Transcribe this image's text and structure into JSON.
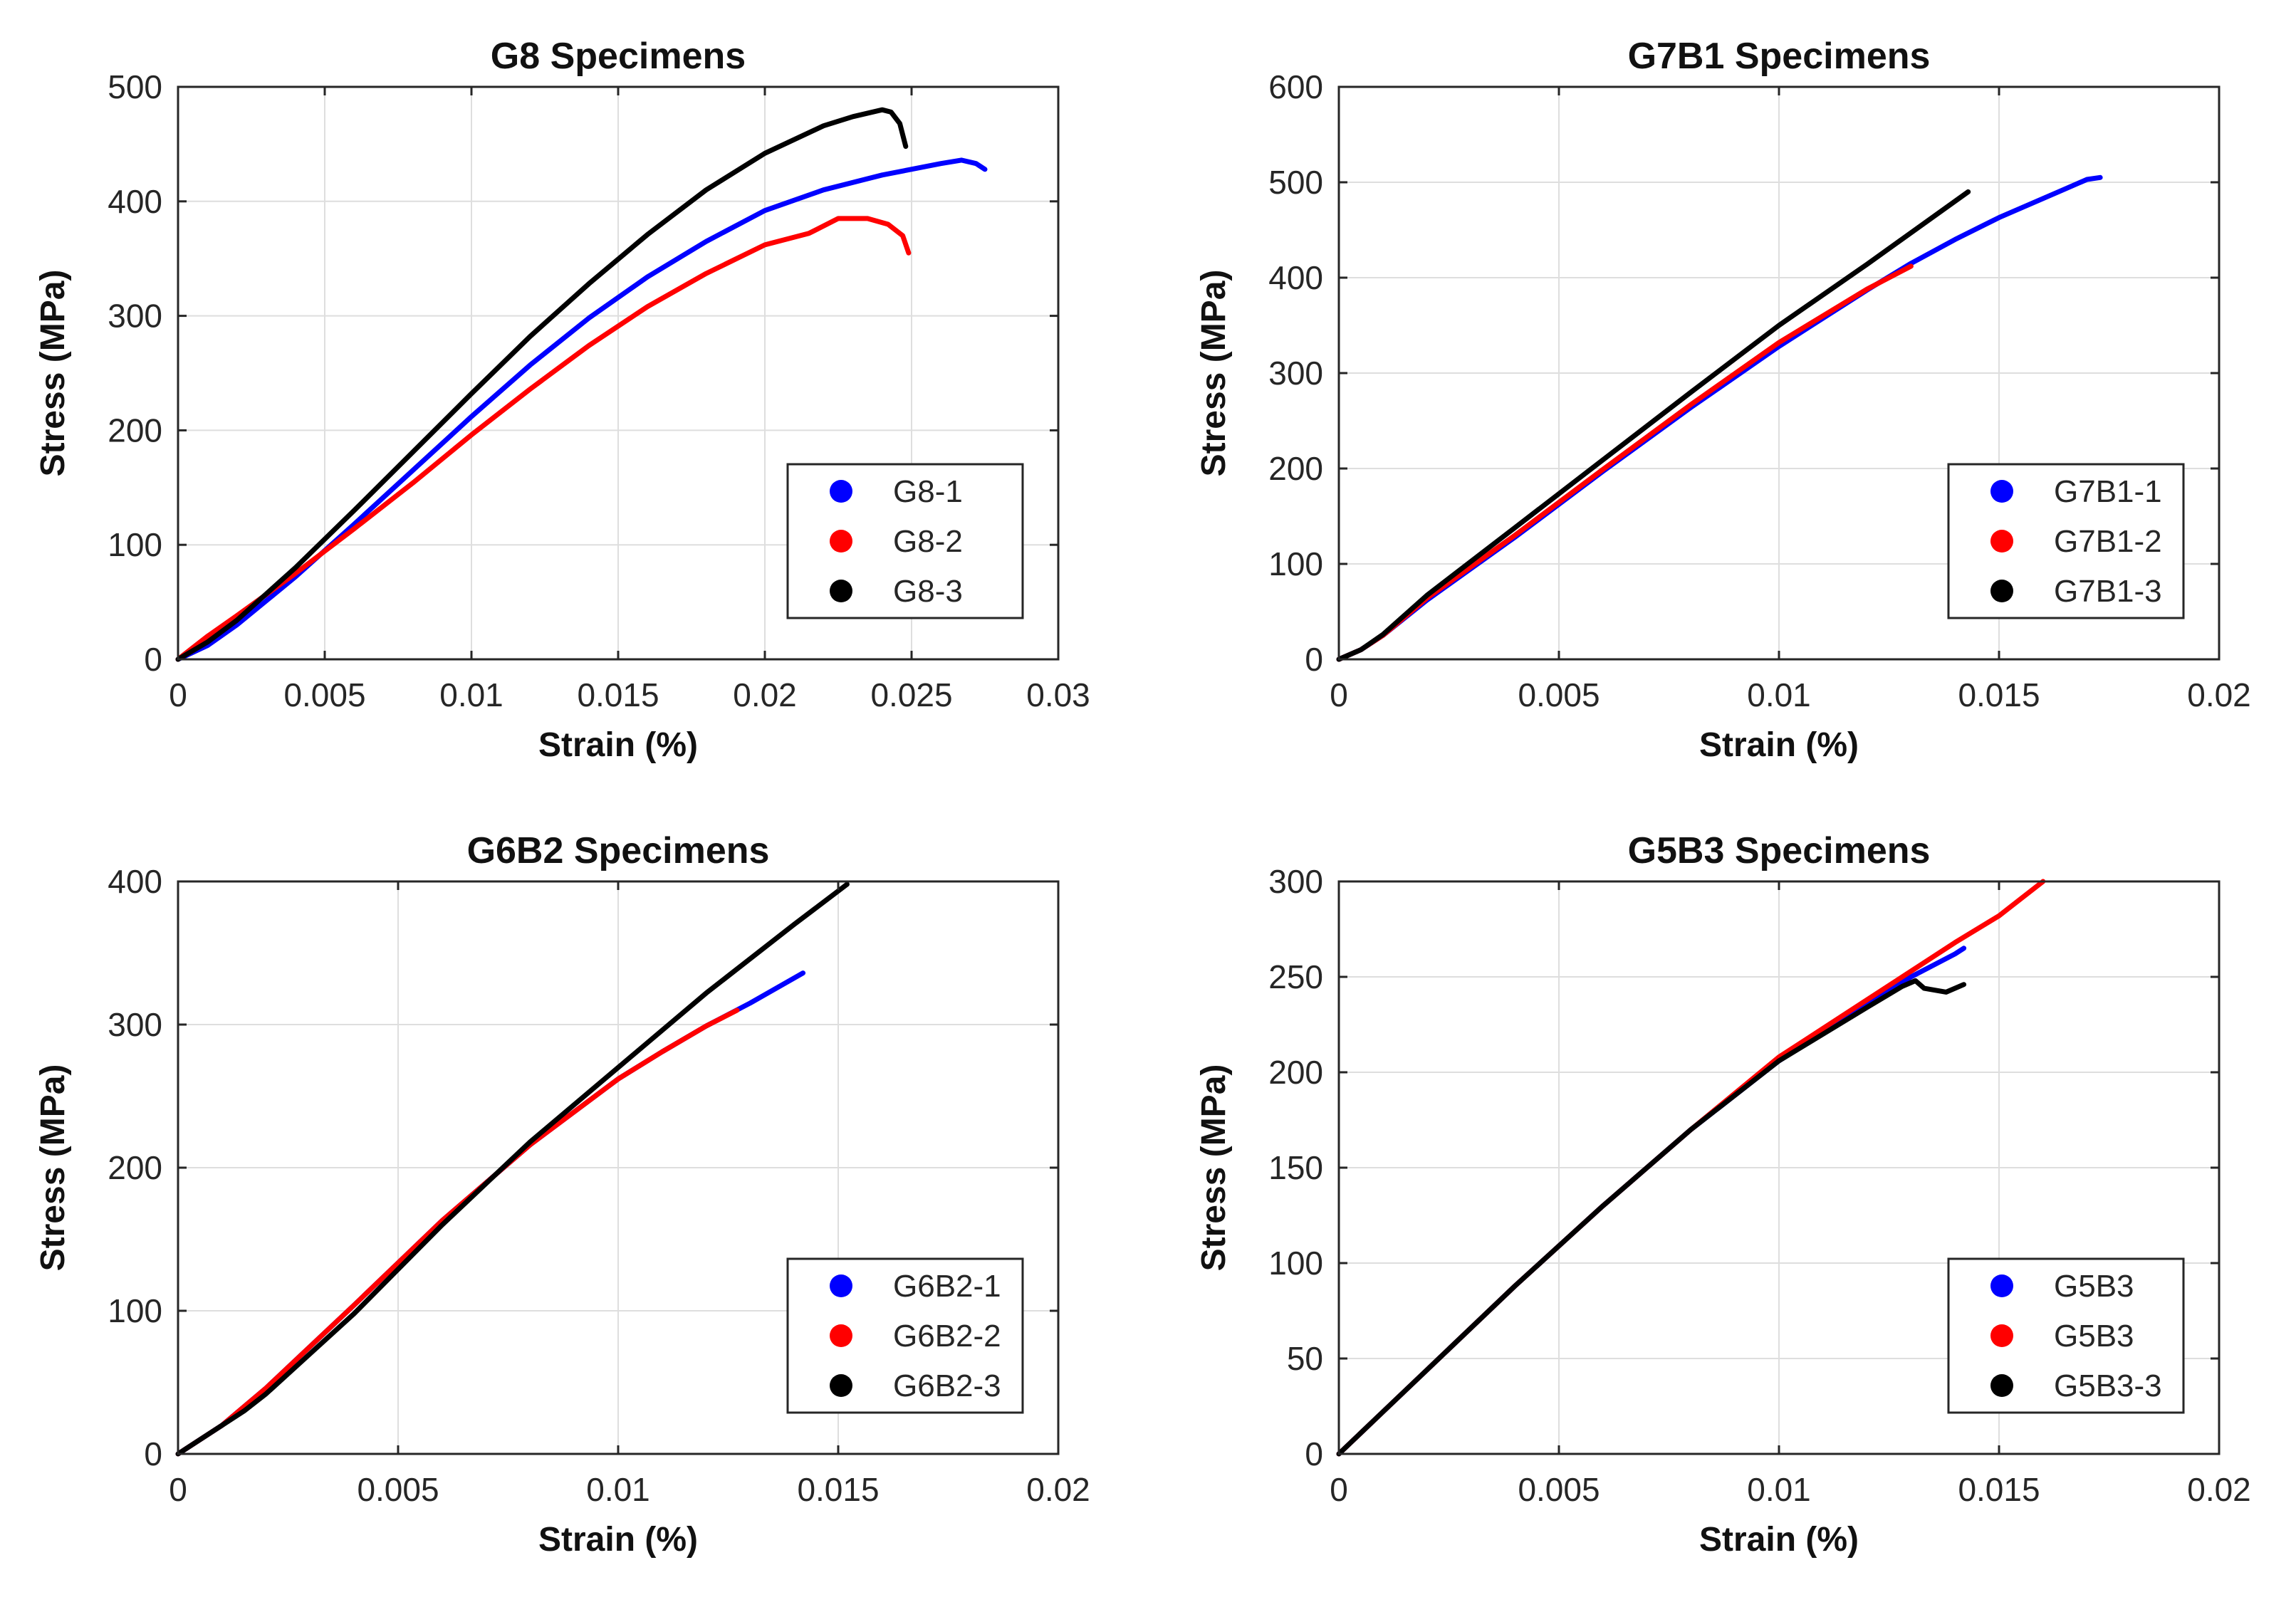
{
  "chart_data": [
    {
      "type": "line",
      "title": "G8 Specimens",
      "xlabel": "Strain (%)",
      "ylabel": "Stress (MPa)",
      "xlim": [
        0,
        0.03
      ],
      "ylim": [
        0,
        500
      ],
      "xticks": [
        0,
        0.005,
        0.01,
        0.015,
        0.02,
        0.025,
        0.03
      ],
      "xtick_labels": [
        "0",
        "0.005",
        "0.01",
        "0.015",
        "0.02",
        "0.025",
        "0.03"
      ],
      "yticks": [
        0,
        100,
        200,
        300,
        400,
        500
      ],
      "ytick_labels": [
        "0",
        "100",
        "200",
        "300",
        "400",
        "500"
      ],
      "grid": true,
      "legend_position": "lower-right",
      "series": [
        {
          "name": "G8-1",
          "color": "#0000ff",
          "x": [
            0,
            0.001,
            0.002,
            0.004,
            0.006,
            0.008,
            0.01,
            0.012,
            0.014,
            0.016,
            0.018,
            0.02,
            0.022,
            0.024,
            0.026,
            0.0267,
            0.0272,
            0.0275
          ],
          "y": [
            0,
            12,
            30,
            72,
            118,
            165,
            212,
            257,
            298,
            334,
            365,
            392,
            410,
            423,
            433,
            436,
            433,
            428
          ]
        },
        {
          "name": "G8-2",
          "color": "#ff0000",
          "x": [
            0,
            0.001,
            0.002,
            0.004,
            0.006,
            0.008,
            0.01,
            0.012,
            0.014,
            0.016,
            0.018,
            0.02,
            0.0215,
            0.0225,
            0.0235,
            0.0242,
            0.0247,
            0.0249
          ],
          "y": [
            0,
            20,
            38,
            75,
            114,
            154,
            196,
            236,
            274,
            308,
            337,
            362,
            372,
            385,
            385,
            380,
            370,
            355
          ]
        },
        {
          "name": "G8-3",
          "color": "#000000",
          "x": [
            0,
            0.001,
            0.002,
            0.004,
            0.006,
            0.008,
            0.01,
            0.012,
            0.014,
            0.016,
            0.018,
            0.02,
            0.022,
            0.023,
            0.024,
            0.0243,
            0.0246,
            0.0248
          ],
          "y": [
            0,
            15,
            34,
            80,
            130,
            181,
            232,
            282,
            328,
            371,
            410,
            442,
            466,
            474,
            480,
            478,
            468,
            448
          ]
        }
      ]
    },
    {
      "type": "line",
      "title": "G7B1 Specimens",
      "xlabel": "Strain (%)",
      "ylabel": "Stress (MPa)",
      "xlim": [
        0,
        0.02
      ],
      "ylim": [
        0,
        600
      ],
      "xticks": [
        0,
        0.005,
        0.01,
        0.015,
        0.02
      ],
      "xtick_labels": [
        "0",
        "0.005",
        "0.01",
        "0.015",
        "0.02"
      ],
      "yticks": [
        0,
        100,
        200,
        300,
        400,
        500,
        600
      ],
      "ytick_labels": [
        "0",
        "100",
        "200",
        "300",
        "400",
        "500",
        "600"
      ],
      "grid": true,
      "legend_position": "lower-right",
      "series": [
        {
          "name": "G7B1-1",
          "color": "#0000ff",
          "x": [
            0,
            0.0005,
            0.001,
            0.002,
            0.004,
            0.006,
            0.008,
            0.01,
            0.012,
            0.013,
            0.014,
            0.015,
            0.016,
            0.0165,
            0.017,
            0.0173
          ],
          "y": [
            0,
            10,
            25,
            62,
            128,
            197,
            264,
            328,
            387,
            415,
            440,
            463,
            483,
            493,
            503,
            505
          ]
        },
        {
          "name": "G7B1-2",
          "color": "#ff0000",
          "x": [
            0,
            0.0005,
            0.001,
            0.002,
            0.004,
            0.006,
            0.008,
            0.01,
            0.012,
            0.013
          ],
          "y": [
            0,
            10,
            25,
            64,
            130,
            199,
            267,
            332,
            388,
            412
          ]
        },
        {
          "name": "G7B1-3",
          "color": "#000000",
          "x": [
            0,
            0.0005,
            0.001,
            0.002,
            0.004,
            0.006,
            0.008,
            0.01,
            0.012,
            0.0143
          ],
          "y": [
            0,
            10,
            26,
            67,
            138,
            209,
            280,
            350,
            414,
            490
          ]
        }
      ]
    },
    {
      "type": "line",
      "title": "G6B2 Specimens",
      "xlabel": "Strain (%)",
      "ylabel": "Stress (MPa)",
      "xlim": [
        0,
        0.02
      ],
      "ylim": [
        0,
        400
      ],
      "xticks": [
        0,
        0.005,
        0.01,
        0.015,
        0.02
      ],
      "xtick_labels": [
        "0",
        "0.005",
        "0.01",
        "0.015",
        "0.02"
      ],
      "yticks": [
        0,
        100,
        200,
        300,
        400
      ],
      "ytick_labels": [
        "0",
        "100",
        "200",
        "300",
        "400"
      ],
      "grid": true,
      "legend_position": "lower-right",
      "series": [
        {
          "name": "G6B2-1",
          "color": "#0000ff",
          "x": [
            0,
            0.001,
            0.002,
            0.004,
            0.006,
            0.008,
            0.01,
            0.011,
            0.012,
            0.013,
            0.0142
          ],
          "y": [
            0,
            20,
            46,
            104,
            163,
            216,
            262,
            281,
            299,
            315,
            336
          ]
        },
        {
          "name": "G6B2-2",
          "color": "#ff0000",
          "x": [
            0,
            0.001,
            0.002,
            0.004,
            0.006,
            0.008,
            0.01,
            0.011,
            0.012,
            0.0127
          ],
          "y": [
            0,
            20,
            46,
            104,
            163,
            216,
            262,
            281,
            299,
            310
          ]
        },
        {
          "name": "G6B2-3",
          "color": "#000000",
          "x": [
            0,
            0.001,
            0.0015,
            0.002,
            0.004,
            0.006,
            0.008,
            0.01,
            0.012,
            0.014,
            0.0152
          ],
          "y": [
            0,
            20,
            30,
            42,
            98,
            160,
            218,
            270,
            322,
            370,
            398
          ]
        }
      ]
    },
    {
      "type": "line",
      "title": "G5B3 Specimens",
      "xlabel": "Strain (%)",
      "ylabel": "Stress (MPa)",
      "xlim": [
        0,
        0.02
      ],
      "ylim": [
        0,
        300
      ],
      "xticks": [
        0,
        0.005,
        0.01,
        0.015,
        0.02
      ],
      "xtick_labels": [
        "0",
        "0.005",
        "0.01",
        "0.015",
        "0.02"
      ],
      "yticks": [
        0,
        50,
        100,
        150,
        200,
        250,
        300
      ],
      "ytick_labels": [
        "0",
        "50",
        "100",
        "150",
        "200",
        "250",
        "300"
      ],
      "grid": true,
      "legend_position": "lower-right",
      "series": [
        {
          "name": "G5B3",
          "color": "#0000ff",
          "x": [
            0,
            0.001,
            0.002,
            0.004,
            0.006,
            0.008,
            0.01,
            0.012,
            0.013,
            0.014,
            0.0142
          ],
          "y": [
            0,
            22,
            44,
            88,
            130,
            170,
            206,
            235,
            250,
            262,
            265
          ]
        },
        {
          "name": "G5B3",
          "color": "#ff0000",
          "x": [
            0,
            0.001,
            0.002,
            0.004,
            0.006,
            0.008,
            0.01,
            0.012,
            0.014,
            0.015,
            0.016
          ],
          "y": [
            0,
            22,
            44,
            88,
            130,
            170,
            208,
            238,
            268,
            282,
            300
          ]
        },
        {
          "name": "G5B3-3",
          "color": "#000000",
          "x": [
            0,
            0.001,
            0.002,
            0.004,
            0.006,
            0.008,
            0.01,
            0.012,
            0.0128,
            0.0131,
            0.0133,
            0.0138,
            0.0142
          ],
          "y": [
            0,
            22,
            44,
            88,
            130,
            170,
            206,
            234,
            245,
            248,
            244,
            242,
            246
          ]
        }
      ]
    }
  ]
}
